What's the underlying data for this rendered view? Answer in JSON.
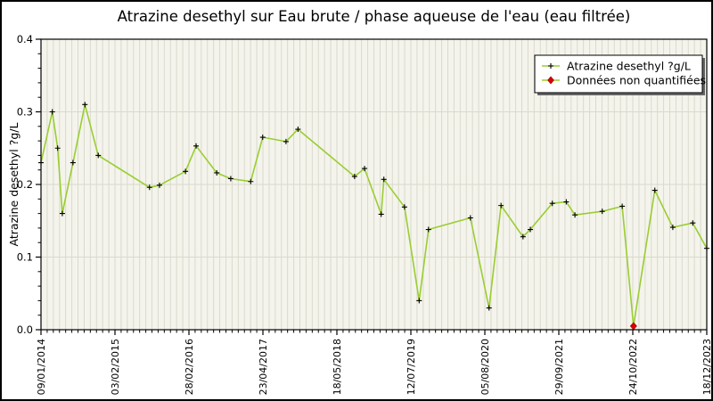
{
  "chart_data": {
    "type": "line",
    "title": "Atrazine desethyl sur Eau brute / phase aqueuse de l'eau (eau filtrée)",
    "ylabel": "Atrazine desethyl ?g/L",
    "xlabel": "",
    "ylim": [
      0.0,
      0.4
    ],
    "y_tick_labels": [
      "0.0",
      "0.1",
      "0.2",
      "0.3",
      "0.4"
    ],
    "y_minor_per_major": 5,
    "x_tick_labels": [
      "09/01/2014",
      "03/02/2015",
      "28/02/2016",
      "23/04/2017",
      "18/05/2018",
      "12/07/2019",
      "05/08/2020",
      "29/09/2021",
      "24/10/2022",
      "18/12/2023"
    ],
    "x_minor_per_major": 12,
    "grid": "vertical-minor and horizontal-major",
    "legend_position": "upper-right",
    "legend": [
      {
        "label": "Atrazine desethyl ?g/L",
        "marker": "plus",
        "marker_color": "#000000"
      },
      {
        "label": "Données non quantifiées",
        "marker": "diamond",
        "marker_color": "#dd0000"
      }
    ],
    "series": [
      {
        "name": "Atrazine desethyl ?g/L",
        "note": "points are [x_fraction_of_axis, value_ug_per_L, non_quantified_flag]",
        "points": [
          [
            0.0,
            0.23
          ],
          [
            0.017,
            0.3
          ],
          [
            0.025,
            0.25
          ],
          [
            0.032,
            0.16
          ],
          [
            0.048,
            0.23
          ],
          [
            0.066,
            0.31
          ],
          [
            0.086,
            0.24
          ],
          [
            0.163,
            0.196
          ],
          [
            0.178,
            0.199
          ],
          [
            0.217,
            0.218
          ],
          [
            0.233,
            0.253
          ],
          [
            0.264,
            0.216
          ],
          [
            0.285,
            0.208
          ],
          [
            0.315,
            0.204
          ],
          [
            0.333,
            0.265
          ],
          [
            0.368,
            0.259
          ],
          [
            0.386,
            0.276
          ],
          [
            0.471,
            0.211
          ],
          [
            0.486,
            0.222
          ],
          [
            0.511,
            0.159
          ],
          [
            0.515,
            0.207
          ],
          [
            0.546,
            0.169
          ],
          [
            0.568,
            0.04
          ],
          [
            0.582,
            0.138
          ],
          [
            0.645,
            0.154
          ],
          [
            0.673,
            0.03
          ],
          [
            0.691,
            0.171
          ],
          [
            0.724,
            0.128
          ],
          [
            0.735,
            0.138
          ],
          [
            0.768,
            0.174
          ],
          [
            0.789,
            0.176
          ],
          [
            0.802,
            0.158
          ],
          [
            0.843,
            0.163
          ],
          [
            0.873,
            0.17
          ],
          [
            0.89,
            0.005,
            1
          ],
          [
            0.922,
            0.192
          ],
          [
            0.949,
            0.141
          ],
          [
            0.979,
            0.147
          ],
          [
            1.0,
            0.112
          ]
        ]
      }
    ],
    "colors": {
      "line": "#9acd32",
      "marker": "#000000",
      "non_quantified_marker": "#dd0000",
      "plot_background": "#f4f4ec",
      "gridline": "#d9d9cc",
      "frame": "#000000",
      "figure_background": "#ffffff",
      "legend_shadow": "#666666"
    }
  }
}
